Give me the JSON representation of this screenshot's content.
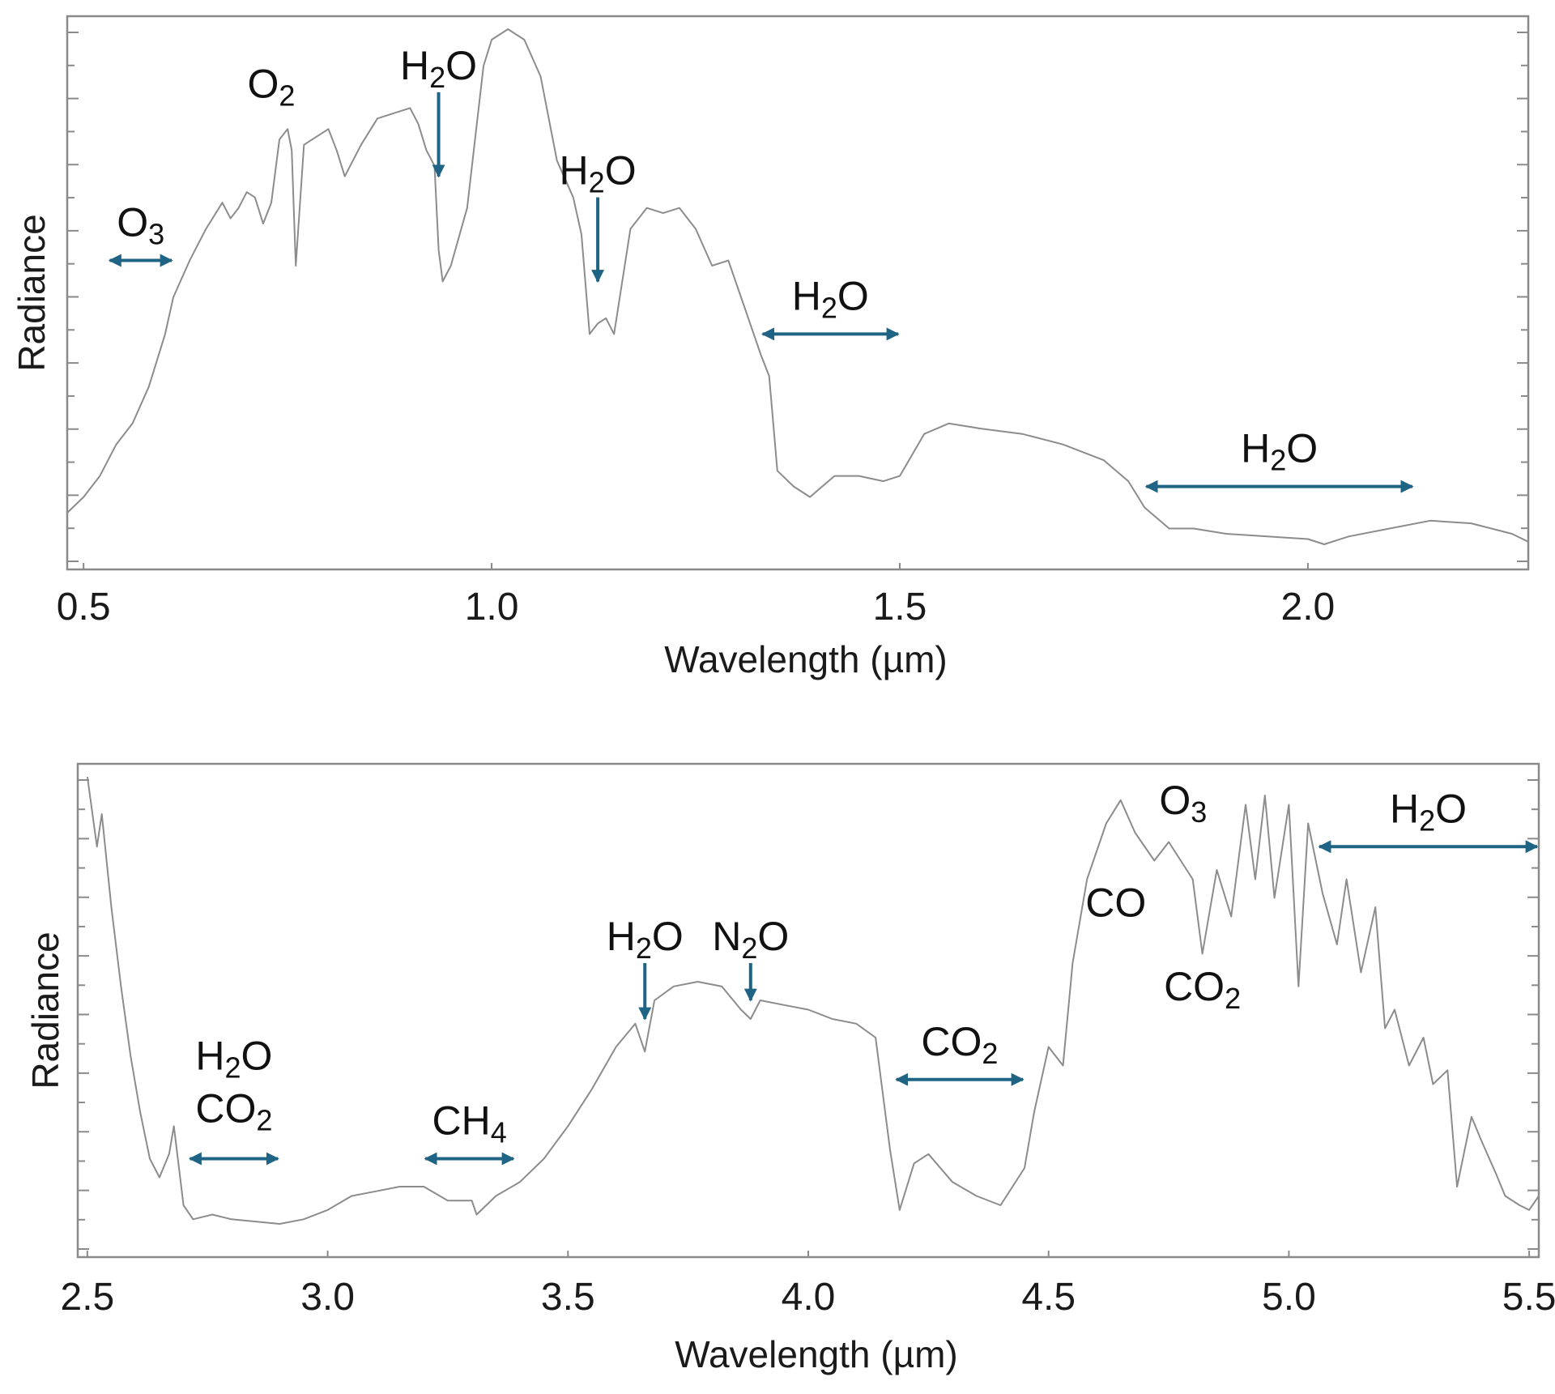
{
  "colors": {
    "arrow": "#1f6385",
    "line": "#8c8c8c",
    "frame": "#8a8a8a",
    "text": "#111111"
  },
  "chart_data": [
    {
      "type": "line",
      "xlabel": "Wavelength (µm)",
      "ylabel": "Radiance",
      "xlim": [
        0.48,
        2.27
      ],
      "ylim": [
        0,
        1
      ],
      "x_ticks": [
        0.5,
        1.0,
        1.5,
        2.0
      ],
      "x_tick_labels": [
        "0.5",
        "1.0",
        "1.5",
        "2.0"
      ],
      "y_tick_labels_shown": false,
      "grid": false,
      "series": [
        {
          "points": [
            [
              0.48,
              0.08
            ],
            [
              0.5,
              0.11
            ],
            [
              0.52,
              0.15
            ],
            [
              0.54,
              0.21
            ],
            [
              0.56,
              0.25
            ],
            [
              0.58,
              0.32
            ],
            [
              0.6,
              0.42
            ],
            [
              0.61,
              0.49
            ],
            [
              0.63,
              0.56
            ],
            [
              0.65,
              0.62
            ],
            [
              0.67,
              0.67
            ],
            [
              0.68,
              0.64
            ],
            [
              0.69,
              0.66
            ],
            [
              0.7,
              0.69
            ],
            [
              0.71,
              0.68
            ],
            [
              0.72,
              0.63
            ],
            [
              0.73,
              0.67
            ],
            [
              0.74,
              0.79
            ],
            [
              0.75,
              0.81
            ],
            [
              0.755,
              0.77
            ],
            [
              0.76,
              0.55
            ],
            [
              0.77,
              0.78
            ],
            [
              0.8,
              0.81
            ],
            [
              0.81,
              0.77
            ],
            [
              0.82,
              0.72
            ],
            [
              0.84,
              0.78
            ],
            [
              0.86,
              0.83
            ],
            [
              0.88,
              0.84
            ],
            [
              0.9,
              0.85
            ],
            [
              0.91,
              0.82
            ],
            [
              0.92,
              0.77
            ],
            [
              0.93,
              0.74
            ],
            [
              0.935,
              0.58
            ],
            [
              0.94,
              0.52
            ],
            [
              0.95,
              0.55
            ],
            [
              0.97,
              0.66
            ],
            [
              0.99,
              0.93
            ],
            [
              1.0,
              0.98
            ],
            [
              1.02,
              1.0
            ],
            [
              1.04,
              0.98
            ],
            [
              1.06,
              0.91
            ],
            [
              1.08,
              0.75
            ],
            [
              1.1,
              0.68
            ],
            [
              1.11,
              0.61
            ],
            [
              1.12,
              0.42
            ],
            [
              1.13,
              0.44
            ],
            [
              1.14,
              0.45
            ],
            [
              1.15,
              0.42
            ],
            [
              1.17,
              0.62
            ],
            [
              1.19,
              0.66
            ],
            [
              1.21,
              0.65
            ],
            [
              1.23,
              0.66
            ],
            [
              1.25,
              0.62
            ],
            [
              1.27,
              0.55
            ],
            [
              1.29,
              0.56
            ],
            [
              1.31,
              0.47
            ],
            [
              1.33,
              0.38
            ],
            [
              1.34,
              0.34
            ],
            [
              1.35,
              0.16
            ],
            [
              1.37,
              0.13
            ],
            [
              1.39,
              0.11
            ],
            [
              1.42,
              0.15
            ],
            [
              1.45,
              0.15
            ],
            [
              1.48,
              0.14
            ],
            [
              1.5,
              0.15
            ],
            [
              1.53,
              0.23
            ],
            [
              1.56,
              0.25
            ],
            [
              1.6,
              0.24
            ],
            [
              1.65,
              0.23
            ],
            [
              1.7,
              0.21
            ],
            [
              1.75,
              0.18
            ],
            [
              1.78,
              0.14
            ],
            [
              1.8,
              0.09
            ],
            [
              1.83,
              0.05
            ],
            [
              1.86,
              0.05
            ],
            [
              1.9,
              0.04
            ],
            [
              1.95,
              0.035
            ],
            [
              2.0,
              0.03
            ],
            [
              2.02,
              0.02
            ],
            [
              2.05,
              0.035
            ],
            [
              2.1,
              0.05
            ],
            [
              2.15,
              0.065
            ],
            [
              2.2,
              0.06
            ],
            [
              2.25,
              0.04
            ],
            [
              2.27,
              0.025
            ]
          ]
        }
      ],
      "annotations": [
        {
          "base": "O",
          "sub": "3",
          "x1": 0.53,
          "x2": 0.61,
          "y": 0.56,
          "type": "double"
        },
        {
          "base": "O",
          "sub": "2",
          "x": 0.73,
          "y": 0.87,
          "type": "label"
        },
        {
          "base": "H",
          "sub": "2",
          "rest": "O",
          "x": 0.935,
          "y_from": 0.88,
          "y_to": 0.72,
          "type": "down"
        },
        {
          "base": "H",
          "sub": "2",
          "rest": "O",
          "x": 1.13,
          "y_from": 0.68,
          "y_to": 0.52,
          "type": "down"
        },
        {
          "base": "H",
          "sub": "2",
          "rest": "O",
          "x1": 1.33,
          "x2": 1.5,
          "y": 0.42,
          "type": "double"
        },
        {
          "base": "H",
          "sub": "2",
          "rest": "O",
          "x1": 1.8,
          "x2": 2.13,
          "y": 0.13,
          "type": "double"
        }
      ]
    },
    {
      "type": "line",
      "xlabel": "Wavelength (µm)",
      "ylabel": "Radiance",
      "xlim": [
        2.48,
        5.52
      ],
      "ylim": [
        0,
        1
      ],
      "x_ticks": [
        2.5,
        3.0,
        3.5,
        4.0,
        4.5,
        5.0,
        5.5
      ],
      "x_tick_labels": [
        "2.5",
        "3.0",
        "3.5",
        "4.0",
        "4.5",
        "5.0",
        "5.5"
      ],
      "y_tick_labels_shown": false,
      "grid": false,
      "series": [
        {
          "points": [
            [
              2.5,
              1.0
            ],
            [
              2.52,
              0.85
            ],
            [
              2.53,
              0.92
            ],
            [
              2.55,
              0.72
            ],
            [
              2.57,
              0.55
            ],
            [
              2.59,
              0.4
            ],
            [
              2.61,
              0.28
            ],
            [
              2.63,
              0.18
            ],
            [
              2.65,
              0.14
            ],
            [
              2.67,
              0.19
            ],
            [
              2.68,
              0.25
            ],
            [
              2.7,
              0.08
            ],
            [
              2.72,
              0.05
            ],
            [
              2.76,
              0.06
            ],
            [
              2.8,
              0.05
            ],
            [
              2.85,
              0.045
            ],
            [
              2.9,
              0.04
            ],
            [
              2.95,
              0.05
            ],
            [
              3.0,
              0.07
            ],
            [
              3.05,
              0.1
            ],
            [
              3.1,
              0.11
            ],
            [
              3.15,
              0.12
            ],
            [
              3.2,
              0.12
            ],
            [
              3.25,
              0.09
            ],
            [
              3.3,
              0.09
            ],
            [
              3.31,
              0.06
            ],
            [
              3.35,
              0.1
            ],
            [
              3.4,
              0.13
            ],
            [
              3.45,
              0.18
            ],
            [
              3.5,
              0.25
            ],
            [
              3.55,
              0.33
            ],
            [
              3.6,
              0.42
            ],
            [
              3.64,
              0.47
            ],
            [
              3.66,
              0.41
            ],
            [
              3.68,
              0.52
            ],
            [
              3.72,
              0.55
            ],
            [
              3.77,
              0.56
            ],
            [
              3.82,
              0.55
            ],
            [
              3.86,
              0.5
            ],
            [
              3.88,
              0.48
            ],
            [
              3.9,
              0.52
            ],
            [
              3.95,
              0.51
            ],
            [
              4.0,
              0.5
            ],
            [
              4.05,
              0.48
            ],
            [
              4.1,
              0.47
            ],
            [
              4.14,
              0.44
            ],
            [
              4.17,
              0.2
            ],
            [
              4.19,
              0.07
            ],
            [
              4.22,
              0.17
            ],
            [
              4.25,
              0.19
            ],
            [
              4.3,
              0.13
            ],
            [
              4.35,
              0.1
            ],
            [
              4.4,
              0.08
            ],
            [
              4.45,
              0.16
            ],
            [
              4.47,
              0.28
            ],
            [
              4.5,
              0.42
            ],
            [
              4.53,
              0.38
            ],
            [
              4.55,
              0.6
            ],
            [
              4.58,
              0.78
            ],
            [
              4.62,
              0.9
            ],
            [
              4.65,
              0.95
            ],
            [
              4.68,
              0.88
            ],
            [
              4.72,
              0.82
            ],
            [
              4.75,
              0.86
            ],
            [
              4.8,
              0.78
            ],
            [
              4.82,
              0.62
            ],
            [
              4.85,
              0.8
            ],
            [
              4.88,
              0.7
            ],
            [
              4.91,
              0.94
            ],
            [
              4.93,
              0.78
            ],
            [
              4.95,
              0.96
            ],
            [
              4.97,
              0.74
            ],
            [
              5.0,
              0.94
            ],
            [
              5.02,
              0.55
            ],
            [
              5.04,
              0.9
            ],
            [
              5.07,
              0.75
            ],
            [
              5.1,
              0.64
            ],
            [
              5.12,
              0.78
            ],
            [
              5.15,
              0.58
            ],
            [
              5.18,
              0.72
            ],
            [
              5.2,
              0.46
            ],
            [
              5.22,
              0.5
            ],
            [
              5.25,
              0.38
            ],
            [
              5.28,
              0.44
            ],
            [
              5.3,
              0.34
            ],
            [
              5.33,
              0.37
            ],
            [
              5.35,
              0.12
            ],
            [
              5.38,
              0.27
            ],
            [
              5.4,
              0.22
            ],
            [
              5.43,
              0.15
            ],
            [
              5.45,
              0.1
            ],
            [
              5.48,
              0.08
            ],
            [
              5.5,
              0.07
            ],
            [
              5.52,
              0.1
            ]
          ]
        }
      ],
      "annotations": [
        {
          "base": "H",
          "sub": "2",
          "rest": "O",
          "line2_base": "CO",
          "line2_sub": "2",
          "x1": 2.71,
          "x2": 2.9,
          "y": 0.18,
          "type": "double"
        },
        {
          "base": "CH",
          "sub": "4",
          "x1": 3.2,
          "x2": 3.39,
          "y": 0.18,
          "type": "double"
        },
        {
          "base": "H",
          "sub": "2",
          "rest": "O",
          "x": 3.66,
          "y_from": 0.6,
          "y_to": 0.48,
          "type": "down"
        },
        {
          "base": "N",
          "sub": "2",
          "rest": "O",
          "x": 3.88,
          "y_from": 0.6,
          "y_to": 0.52,
          "type": "down"
        },
        {
          "base": "CO",
          "sub": "2",
          "x1": 4.18,
          "x2": 4.45,
          "y": 0.35,
          "type": "double"
        },
        {
          "base": "O",
          "sub": "3",
          "x": 4.78,
          "y": 0.92,
          "type": "label"
        },
        {
          "base": "CO",
          "sub": "",
          "x": 4.64,
          "y": 0.7,
          "type": "label"
        },
        {
          "base": "CO",
          "sub": "2",
          "x": 4.82,
          "y": 0.52,
          "type": "label"
        },
        {
          "base": "H",
          "sub": "2",
          "rest": "O",
          "x1": 5.06,
          "x2": 5.52,
          "y": 0.85,
          "type": "double"
        }
      ]
    }
  ]
}
